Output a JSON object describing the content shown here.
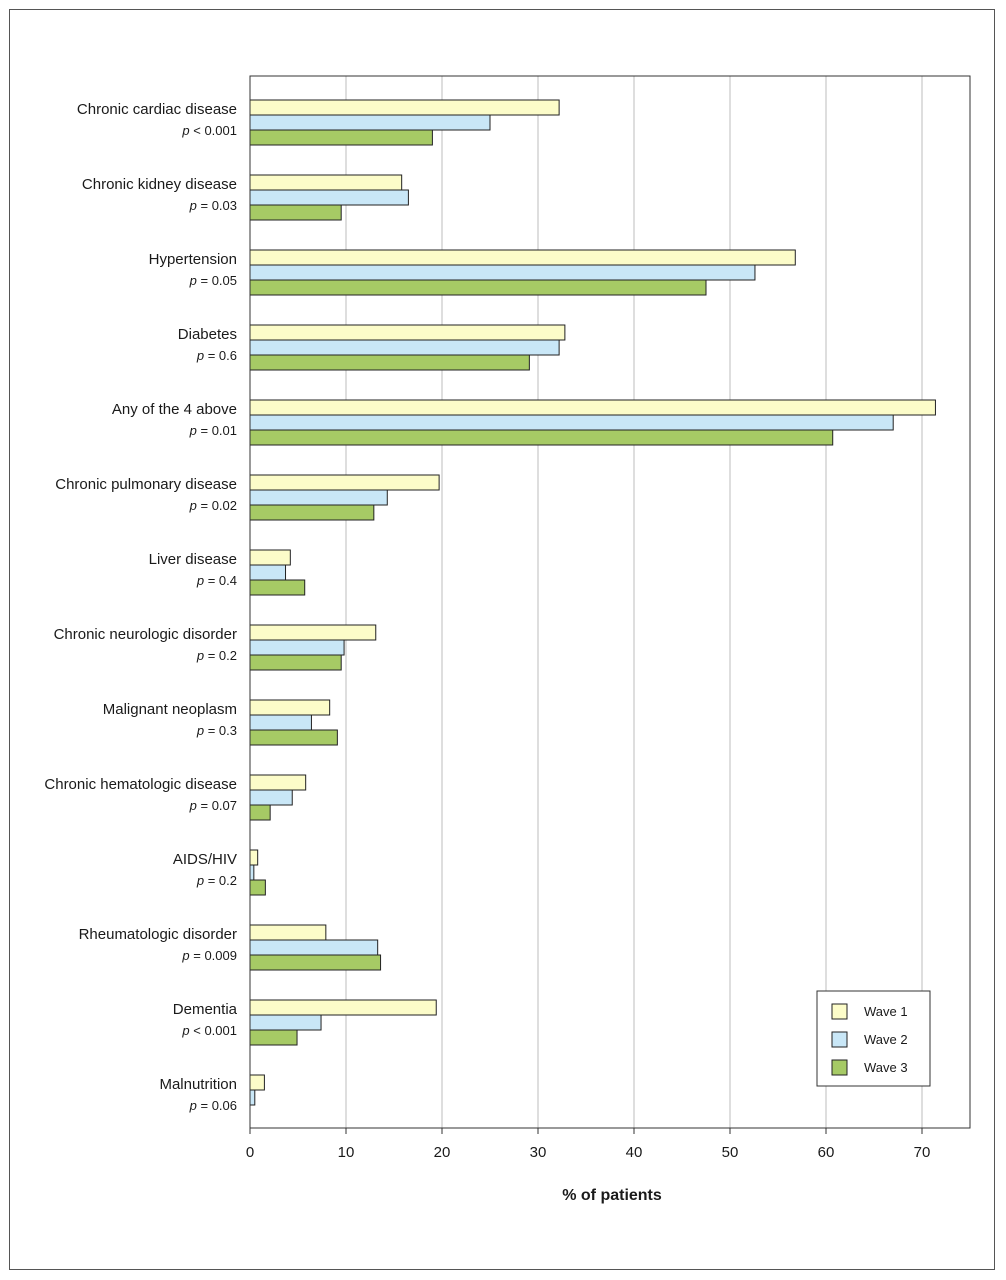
{
  "chart_data": {
    "type": "bar",
    "orientation": "horizontal",
    "xlabel": "% of patients",
    "xlim": [
      0,
      75
    ],
    "x_ticks": [
      0,
      10,
      20,
      30,
      40,
      50,
      60,
      70
    ],
    "grid": "vertical",
    "legend_position": "bottom-right",
    "categories": [
      "Chronic cardiac disease",
      "Chronic kidney disease",
      "Hypertension",
      "Diabetes",
      "Any of the 4 above",
      "Chronic pulmonary disease",
      "Liver disease",
      "Chronic neurologic disorder",
      "Malignant neoplasm",
      "Chronic hematologic disease",
      "AIDS/HIV",
      "Rheumatologic disorder",
      "Dementia",
      "Malnutrition"
    ],
    "p_values": [
      "< 0.001",
      "= 0.03",
      "= 0.05",
      "= 0.6",
      "= 0.01",
      "= 0.02",
      "= 0.4",
      "= 0.2",
      "= 0.3",
      "= 0.07",
      "= 0.2",
      "= 0.009",
      "< 0.001",
      "= 0.06"
    ],
    "p_symbol": "p",
    "series": [
      {
        "name": "Wave 1",
        "color": "#fcfcc9",
        "values": [
          32.2,
          15.8,
          56.8,
          32.8,
          71.4,
          19.7,
          4.2,
          13.1,
          8.3,
          5.8,
          0.8,
          7.9,
          19.4,
          1.5
        ]
      },
      {
        "name": "Wave 2",
        "color": "#c9e7f7",
        "values": [
          25.0,
          16.5,
          52.6,
          32.2,
          67.0,
          14.3,
          3.7,
          9.8,
          6.4,
          4.4,
          0.4,
          13.3,
          7.4,
          0.5
        ]
      },
      {
        "name": "Wave 3",
        "color": "#a6ca65",
        "values": [
          19.0,
          9.5,
          47.5,
          29.1,
          60.7,
          12.9,
          5.7,
          9.5,
          9.1,
          2.1,
          1.6,
          13.6,
          4.9,
          0.0
        ]
      }
    ]
  }
}
